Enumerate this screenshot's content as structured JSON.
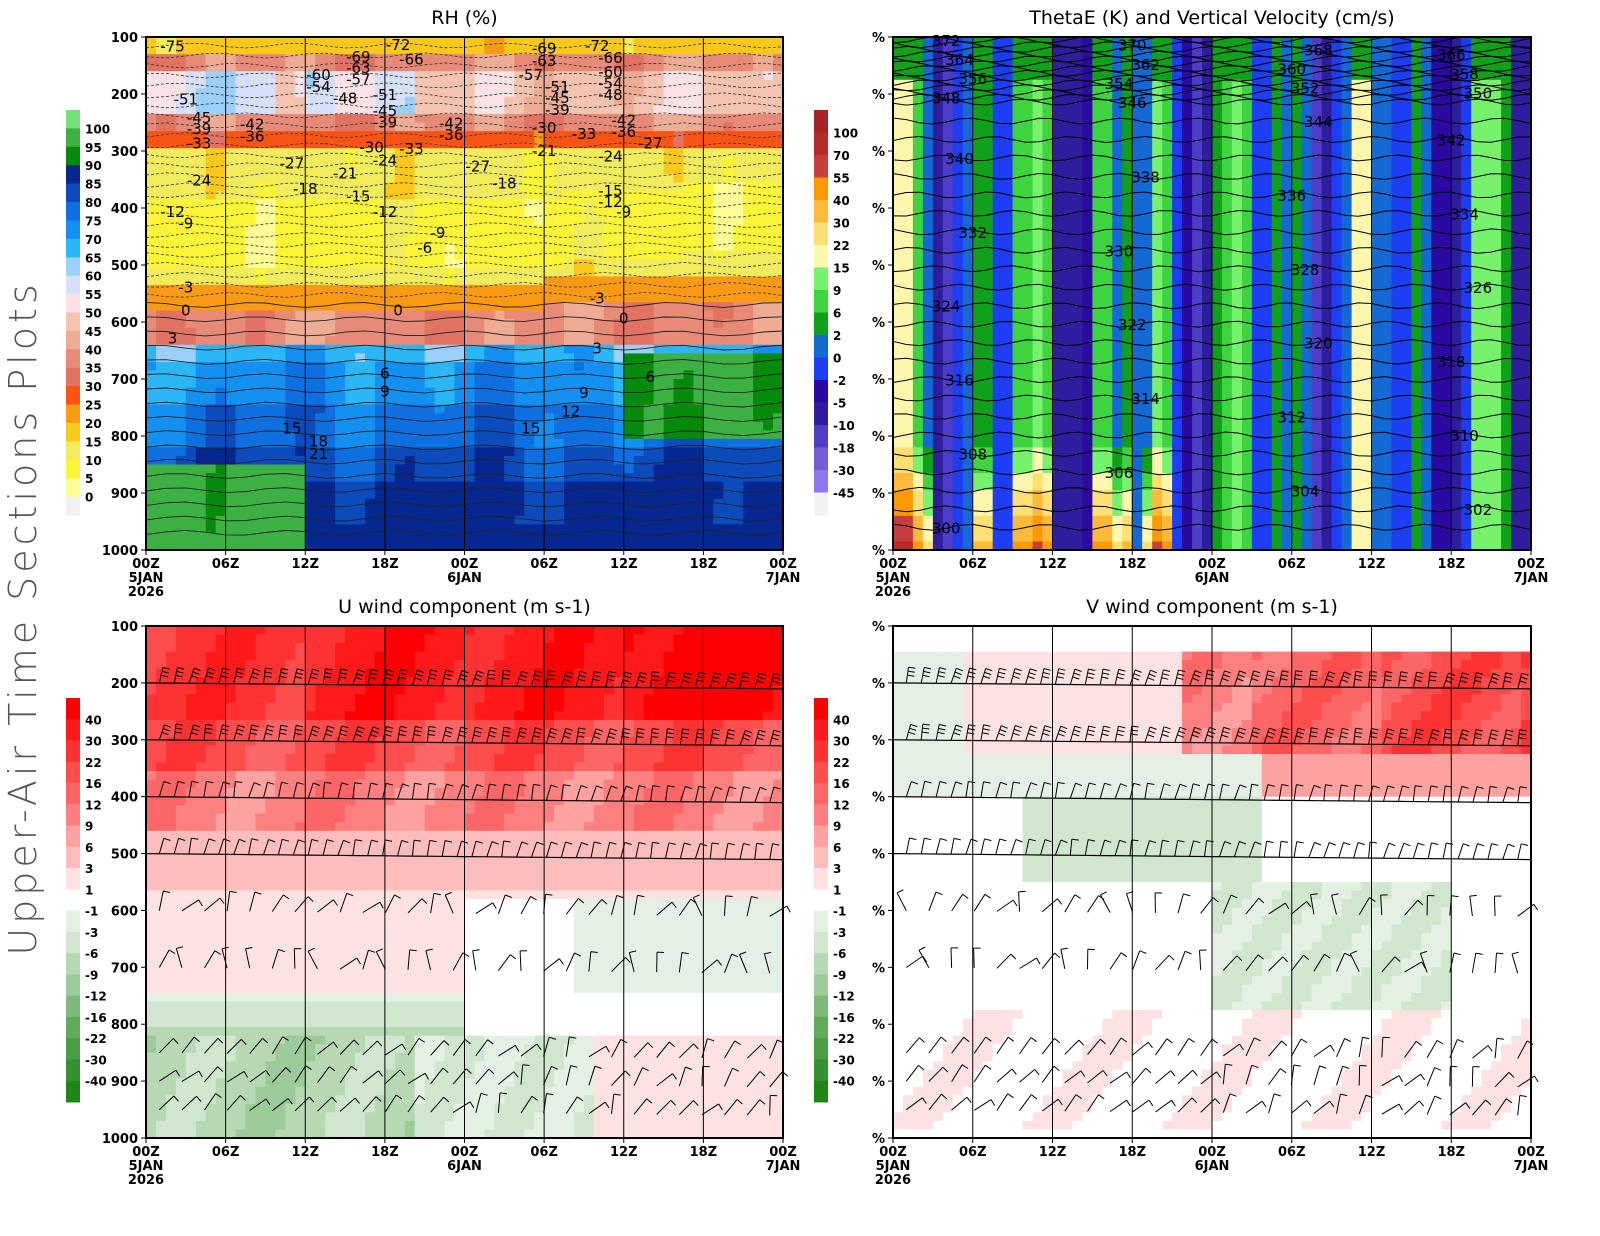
{
  "page_title": "Upper-Air Time Sections Plots",
  "time_axis": {
    "ticks": [
      "00Z",
      "06Z",
      "12Z",
      "18Z",
      "00Z",
      "06Z",
      "12Z",
      "18Z",
      "00Z"
    ],
    "dates": [
      {
        "index": 0,
        "label": "5JAN"
      },
      {
        "index": 4,
        "label": "6JAN"
      },
      {
        "index": 8,
        "label": "7JAN"
      }
    ],
    "year": "2026",
    "hours_from_start": [
      0,
      6,
      12,
      18,
      24,
      30,
      36,
      42,
      48
    ]
  },
  "chart_data": [
    {
      "id": "rh",
      "type": "heatmap",
      "title": "RH (%)",
      "ylabel_ticks": [
        "100",
        "200",
        "300",
        "400",
        "500",
        "600",
        "700",
        "800",
        "900",
        "1000"
      ],
      "ylim": [
        1000,
        100
      ],
      "colorbar": {
        "labels": [
          "100",
          "95",
          "90",
          "85",
          "80",
          "75",
          "70",
          "65",
          "60",
          "55",
          "50",
          "45",
          "40",
          "35",
          "30",
          "25",
          "20",
          "15",
          "10",
          "5",
          "0"
        ],
        "colors": [
          "#74e07a",
          "#3cb043",
          "#058a0b",
          "#06278f",
          "#0b4bbb",
          "#0d6fe0",
          "#1390f2",
          "#2bb7f7",
          "#9bd0fb",
          "#d7e0fb",
          "#fbe2e6",
          "#f5c4b0",
          "#eeac94",
          "#e88a78",
          "#e27363",
          "#fa5515",
          "#fb9a14",
          "#fbc81c",
          "#f2ec5c",
          "#fbf437",
          "#fdfd96",
          "#f2f2f2"
        ]
      },
      "contour_labels": [
        "-75",
        "-72",
        "-69",
        "-66",
        "-63",
        "-60",
        "-57",
        "-54",
        "-51",
        "-48",
        "-45",
        "-42",
        "-39",
        "-36",
        "-33",
        "-30",
        "-27",
        "-24",
        "-21",
        "-18",
        "-15",
        "-12",
        "-9",
        "-6",
        "-3",
        "0",
        "3",
        "6",
        "9",
        "12",
        "15",
        "18",
        "21"
      ],
      "contour_placed": [
        {
          "v": "-75",
          "t": 2,
          "p": 115
        },
        {
          "v": "-51",
          "t": 3,
          "p": 208
        },
        {
          "v": "-45",
          "t": 4,
          "p": 240
        },
        {
          "v": "-39",
          "t": 4,
          "p": 260
        },
        {
          "v": "-33",
          "t": 4,
          "p": 285
        },
        {
          "v": "-42",
          "t": 8,
          "p": 252
        },
        {
          "v": "-36",
          "t": 8,
          "p": 273
        },
        {
          "v": "-27",
          "t": 11,
          "p": 320
        },
        {
          "v": "-24",
          "t": 4,
          "p": 350
        },
        {
          "v": "-69",
          "t": 16,
          "p": 133
        },
        {
          "v": "-63",
          "t": 16,
          "p": 153
        },
        {
          "v": "-57",
          "t": 16,
          "p": 173
        },
        {
          "v": "-60",
          "t": 13,
          "p": 165
        },
        {
          "v": "-54",
          "t": 13,
          "p": 186
        },
        {
          "v": "-48",
          "t": 15,
          "p": 206
        },
        {
          "v": "-51",
          "t": 18,
          "p": 200
        },
        {
          "v": "-45",
          "t": 18,
          "p": 228
        },
        {
          "v": "-39",
          "t": 18,
          "p": 248
        },
        {
          "v": "-30",
          "t": 17,
          "p": 292
        },
        {
          "v": "-24",
          "t": 18,
          "p": 315
        },
        {
          "v": "-21",
          "t": 15,
          "p": 338
        },
        {
          "v": "-18",
          "t": 12,
          "p": 365
        },
        {
          "v": "-15",
          "t": 16,
          "p": 378
        },
        {
          "v": "-12",
          "t": 18,
          "p": 405
        },
        {
          "v": "-72",
          "t": 19,
          "p": 112
        },
        {
          "v": "-66",
          "t": 20,
          "p": 138
        },
        {
          "v": "-33",
          "t": 20,
          "p": 295
        },
        {
          "v": "-42",
          "t": 23,
          "p": 250
        },
        {
          "v": "-36",
          "t": 23,
          "p": 270
        },
        {
          "v": "-9",
          "t": 22,
          "p": 442
        },
        {
          "v": "-6",
          "t": 21,
          "p": 468
        },
        {
          "v": "-69",
          "t": 30,
          "p": 118
        },
        {
          "v": "-63",
          "t": 30,
          "p": 140
        },
        {
          "v": "-57",
          "t": 29,
          "p": 165
        },
        {
          "v": "-51",
          "t": 31,
          "p": 186
        },
        {
          "v": "-45",
          "t": 31,
          "p": 205
        },
        {
          "v": "-39",
          "t": 31,
          "p": 226
        },
        {
          "v": "-30",
          "t": 30,
          "p": 258
        },
        {
          "v": "-21",
          "t": 30,
          "p": 298
        },
        {
          "v": "-27",
          "t": 25,
          "p": 325
        },
        {
          "v": "-18",
          "t": 27,
          "p": 355
        },
        {
          "v": "-72",
          "t": 34,
          "p": 114
        },
        {
          "v": "-66",
          "t": 35,
          "p": 135
        },
        {
          "v": "-60",
          "t": 35,
          "p": 160
        },
        {
          "v": "-54",
          "t": 35,
          "p": 180
        },
        {
          "v": "-48",
          "t": 35,
          "p": 200
        },
        {
          "v": "-33",
          "t": 33,
          "p": 268
        },
        {
          "v": "-42",
          "t": 36,
          "p": 245
        },
        {
          "v": "-36",
          "t": 36,
          "p": 265
        },
        {
          "v": "-24",
          "t": 35,
          "p": 308
        },
        {
          "v": "-27",
          "t": 38,
          "p": 285
        },
        {
          "v": "-15",
          "t": 35,
          "p": 368
        },
        {
          "v": "-12",
          "t": 35,
          "p": 388
        },
        {
          "v": "-9",
          "t": 36,
          "p": 405
        },
        {
          "v": "-12",
          "t": 2,
          "p": 405
        },
        {
          "v": "-9",
          "t": 3,
          "p": 425
        },
        {
          "v": "-3",
          "t": 3,
          "p": 538
        },
        {
          "v": "0",
          "t": 3,
          "p": 578
        },
        {
          "v": "3",
          "t": 2,
          "p": 627
        },
        {
          "v": "0",
          "t": 19,
          "p": 578
        },
        {
          "v": "-3",
          "t": 34,
          "p": 557
        },
        {
          "v": "0",
          "t": 36,
          "p": 592
        },
        {
          "v": "3",
          "t": 34,
          "p": 645
        },
        {
          "v": "6",
          "t": 18,
          "p": 689
        },
        {
          "v": "9",
          "t": 18,
          "p": 720
        },
        {
          "v": "6",
          "t": 38,
          "p": 695
        },
        {
          "v": "9",
          "t": 33,
          "p": 723
        },
        {
          "v": "12",
          "t": 32,
          "p": 755
        },
        {
          "v": "15",
          "t": 29,
          "p": 785
        },
        {
          "v": "15",
          "t": 11,
          "p": 785
        },
        {
          "v": "18",
          "t": 13,
          "p": 808
        },
        {
          "v": "21",
          "t": 13,
          "p": 830
        }
      ]
    },
    {
      "id": "thetae",
      "type": "heatmap",
      "title": "ThetaE (K) and Vertical Velocity (cm/s)",
      "ylabel_ticks": [
        "%",
        "%",
        "%",
        "%",
        "%",
        "%",
        "%",
        "%",
        "%",
        "%"
      ],
      "colorbar": {
        "labels": [
          "100",
          "70",
          "55",
          "40",
          "30",
          "22",
          "15",
          "9",
          "6",
          "2",
          "0",
          "-2",
          "-5",
          "-10",
          "-18",
          "-30",
          "-45"
        ],
        "colors": [
          "#a52325",
          "#b82a2b",
          "#c73e3e",
          "#fb9a00",
          "#fbba3a",
          "#fde073",
          "#fdf6ad",
          "#77f26d",
          "#3ed43f",
          "#11a01a",
          "#1569d5",
          "#1e3ef5",
          "#2a0aa3",
          "#2e1e9e",
          "#4d3dc8",
          "#735ed6",
          "#8f76ec",
          "#f2f2f2"
        ]
      },
      "contour_labels": [
        "372",
        "370",
        "368",
        "366",
        "364",
        "362",
        "360",
        "358",
        "356",
        "354",
        "352",
        "350",
        "348",
        "346",
        "344",
        "342",
        "340",
        "338",
        "336",
        "334",
        "332",
        "330",
        "328",
        "326",
        "324",
        "322",
        "320",
        "318",
        "316",
        "314",
        "312",
        "310",
        "308",
        "306",
        "304",
        "302",
        "300"
      ]
    },
    {
      "id": "u",
      "type": "heatmap",
      "title": "U wind component (m s-1)",
      "ylabel_ticks": [
        "100",
        "200",
        "300",
        "400",
        "500",
        "600",
        "700",
        "800",
        "900",
        "1000"
      ],
      "ylim": [
        1000,
        100
      ],
      "colorbar": {
        "labels": [
          "40",
          "30",
          "22",
          "16",
          "12",
          "9",
          "6",
          "3",
          "1",
          "-1",
          "-3",
          "-6",
          "-9",
          "-12",
          "-16",
          "-22",
          "-30",
          "-40"
        ],
        "colors": [
          "#fe0000",
          "#fe1a1a",
          "#fd3333",
          "#fd4d4d",
          "#fd6666",
          "#fd8080",
          "#fda1a1",
          "#fdbdbd",
          "#fee2e2",
          "#ffffff",
          "#e4f0e4",
          "#d0e6cf",
          "#b6d9b4",
          "#9bcb98",
          "#7db979",
          "#61a95b",
          "#4b9c45",
          "#369132",
          "#1f8719"
        ]
      },
      "barb_levels": [
        200,
        300,
        400,
        500,
        600,
        700,
        850,
        900,
        950
      ]
    },
    {
      "id": "v",
      "type": "heatmap",
      "title": "V wind component (m s-1)",
      "ylabel_ticks": [
        "%",
        "%",
        "%",
        "%",
        "%",
        "%",
        "%",
        "%",
        "%",
        "%"
      ],
      "colorbar": {
        "labels": [
          "40",
          "30",
          "22",
          "16",
          "12",
          "9",
          "6",
          "3",
          "1",
          "-1",
          "-3",
          "-6",
          "-9",
          "-12",
          "-16",
          "-22",
          "-30",
          "-40"
        ],
        "colors": [
          "#fe0000",
          "#fe1a1a",
          "#fd3333",
          "#fd4d4d",
          "#fd6666",
          "#fd8080",
          "#fda1a1",
          "#fdbdbd",
          "#fee2e2",
          "#ffffff",
          "#e4f0e4",
          "#d0e6cf",
          "#b6d9b4",
          "#9bcb98",
          "#7db979",
          "#61a95b",
          "#4b9c45",
          "#369132",
          "#1f8719"
        ]
      },
      "barb_levels": [
        200,
        300,
        400,
        500,
        600,
        700,
        850,
        900,
        950
      ]
    }
  ]
}
